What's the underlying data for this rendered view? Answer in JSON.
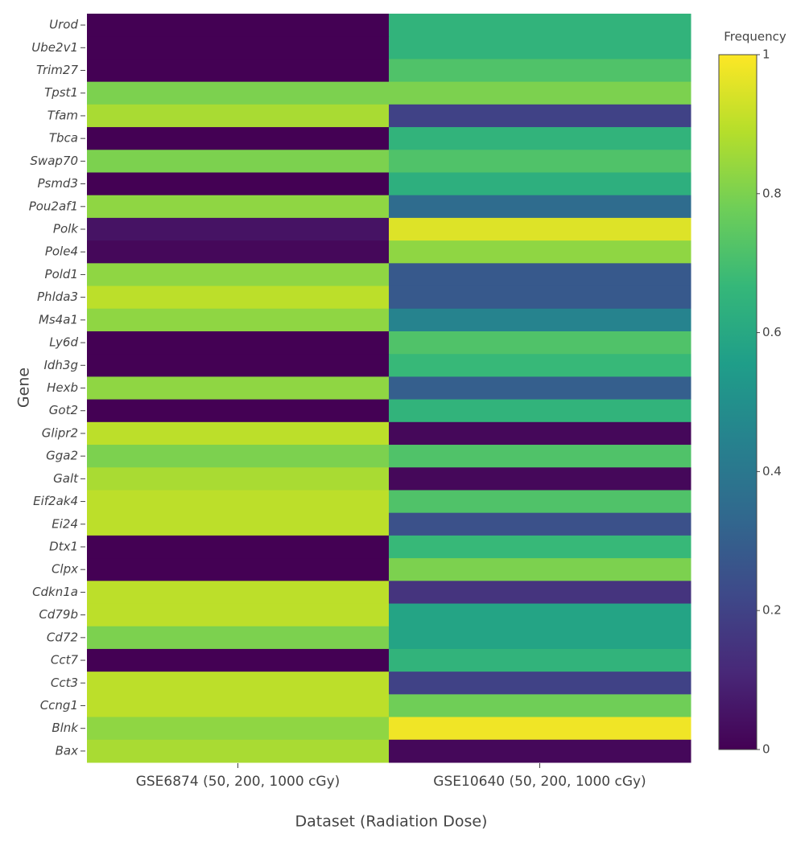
{
  "chart_data": {
    "type": "heatmap",
    "x_label": "Dataset (Radiation Dose)",
    "y_label": "Gene",
    "colorbar_title": "Frequency",
    "x": [
      "GSE6874 (50, 200, 1000 cGy)",
      "GSE10640 (50, 200, 1000 cGy)"
    ],
    "y": [
      "Urod",
      "Ube2v1",
      "Trim27",
      "Tpst1",
      "Tfam",
      "Tbca",
      "Swap70",
      "Psmd3",
      "Pou2af1",
      "Polk",
      "Pole4",
      "Pold1",
      "Phlda3",
      "Ms4a1",
      "Ly6d",
      "Idh3g",
      "Hexb",
      "Got2",
      "Glipr2",
      "Gga2",
      "Galt",
      "Eif2ak4",
      "Ei24",
      "Dtx1",
      "Clpx",
      "Cdkn1a",
      "Cd79b",
      "Cd72",
      "Cct7",
      "Cct3",
      "Ccng1",
      "Blnk",
      "Bax"
    ],
    "z": [
      [
        0,
        0.65
      ],
      [
        0,
        0.65
      ],
      [
        0,
        0.72
      ],
      [
        0.8,
        0.8
      ],
      [
        0.87,
        0.2
      ],
      [
        0,
        0.65
      ],
      [
        0.8,
        0.72
      ],
      [
        0,
        0.63
      ],
      [
        0.83,
        0.35
      ],
      [
        0.05,
        0.95
      ],
      [
        0.02,
        0.83
      ],
      [
        0.83,
        0.28
      ],
      [
        0.9,
        0.28
      ],
      [
        0.83,
        0.45
      ],
      [
        0,
        0.72
      ],
      [
        0,
        0.67
      ],
      [
        0.83,
        0.3
      ],
      [
        0,
        0.65
      ],
      [
        0.9,
        0.02
      ],
      [
        0.8,
        0.72
      ],
      [
        0.87,
        0.02
      ],
      [
        0.9,
        0.72
      ],
      [
        0.9,
        0.25
      ],
      [
        0,
        0.67
      ],
      [
        0,
        0.8
      ],
      [
        0.9,
        0.15
      ],
      [
        0.9,
        0.58
      ],
      [
        0.8,
        0.58
      ],
      [
        0,
        0.65
      ],
      [
        0.9,
        0.2
      ],
      [
        0.9,
        0.78
      ],
      [
        0.83,
        0.98
      ],
      [
        0.87,
        0.02
      ]
    ],
    "clim": [
      0,
      1
    ],
    "cticks": [
      0,
      0.2,
      0.4,
      0.6,
      0.8,
      1
    ],
    "colorscale": [
      "#440154",
      "#482878",
      "#3e4989",
      "#31688e",
      "#26828e",
      "#1f9e89",
      "#35b779",
      "#6ece58",
      "#b5de2b",
      "#fde725"
    ]
  }
}
